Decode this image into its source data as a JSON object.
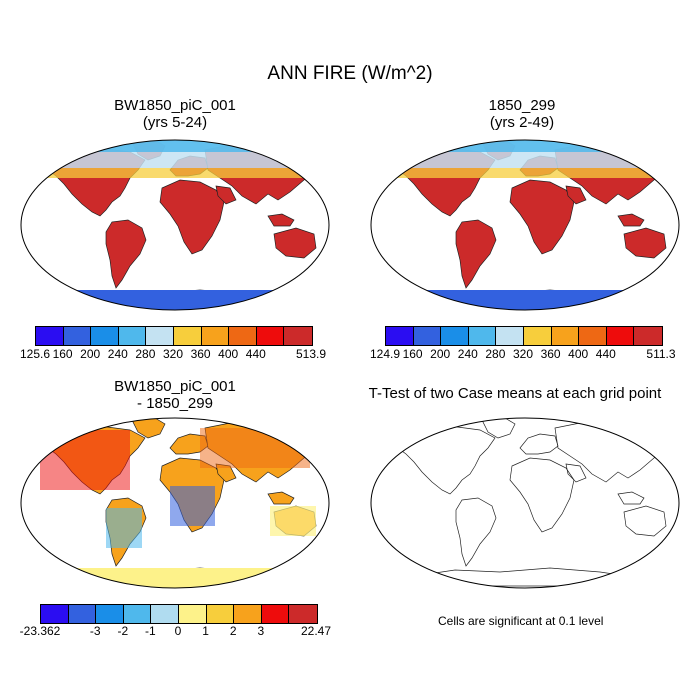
{
  "title": "ANN FIRE (W/m^2)",
  "panels": {
    "top_left": {
      "title_line1": "BW1850_piC_001",
      "title_line2": "(yrs 5-24)"
    },
    "top_right": {
      "title_line1": "1850_299",
      "title_line2": "(yrs 2-49)"
    },
    "bottom_left": {
      "title_line1": "BW1850_piC_001",
      "title_line2": "- 1850_299"
    },
    "bottom_right": {
      "title_line1": "T-Test of two Case means at each grid point"
    }
  },
  "colorbar_top_left": {
    "labels": [
      "125.6",
      "160",
      "200",
      "240",
      "280",
      "320",
      "360",
      "400",
      "440",
      "513.9"
    ],
    "colors": [
      "#2b0df2",
      "#3361df",
      "#1a8ee8",
      "#4fb8ec",
      "#c4e2f2",
      "#f7ce3c",
      "#f7a21c",
      "#ee6814",
      "#ee0c0c",
      "#cc2a2a"
    ]
  },
  "colorbar_top_right": {
    "labels": [
      "124.9",
      "160",
      "200",
      "240",
      "280",
      "320",
      "360",
      "400",
      "440",
      "511.3"
    ],
    "colors": [
      "#2b0df2",
      "#3361df",
      "#1a8ee8",
      "#4fb8ec",
      "#c4e2f2",
      "#f7ce3c",
      "#f7a21c",
      "#ee6814",
      "#ee0c0c",
      "#cc2a2a"
    ]
  },
  "colorbar_bottom_left": {
    "labels": [
      "-23.362",
      "-3",
      "-2",
      "-1",
      "0",
      "1",
      "2",
      "3",
      "22.47"
    ],
    "colors": [
      "#2b0df2",
      "#3361df",
      "#1a8ee8",
      "#4fb8ec",
      "#b0dcf0",
      "#fdf28a",
      "#f7ce3c",
      "#f7a21c",
      "#ee0c0c",
      "#cc2a2a"
    ]
  },
  "significance_note": "Cells are significant at 0.1 level"
}
